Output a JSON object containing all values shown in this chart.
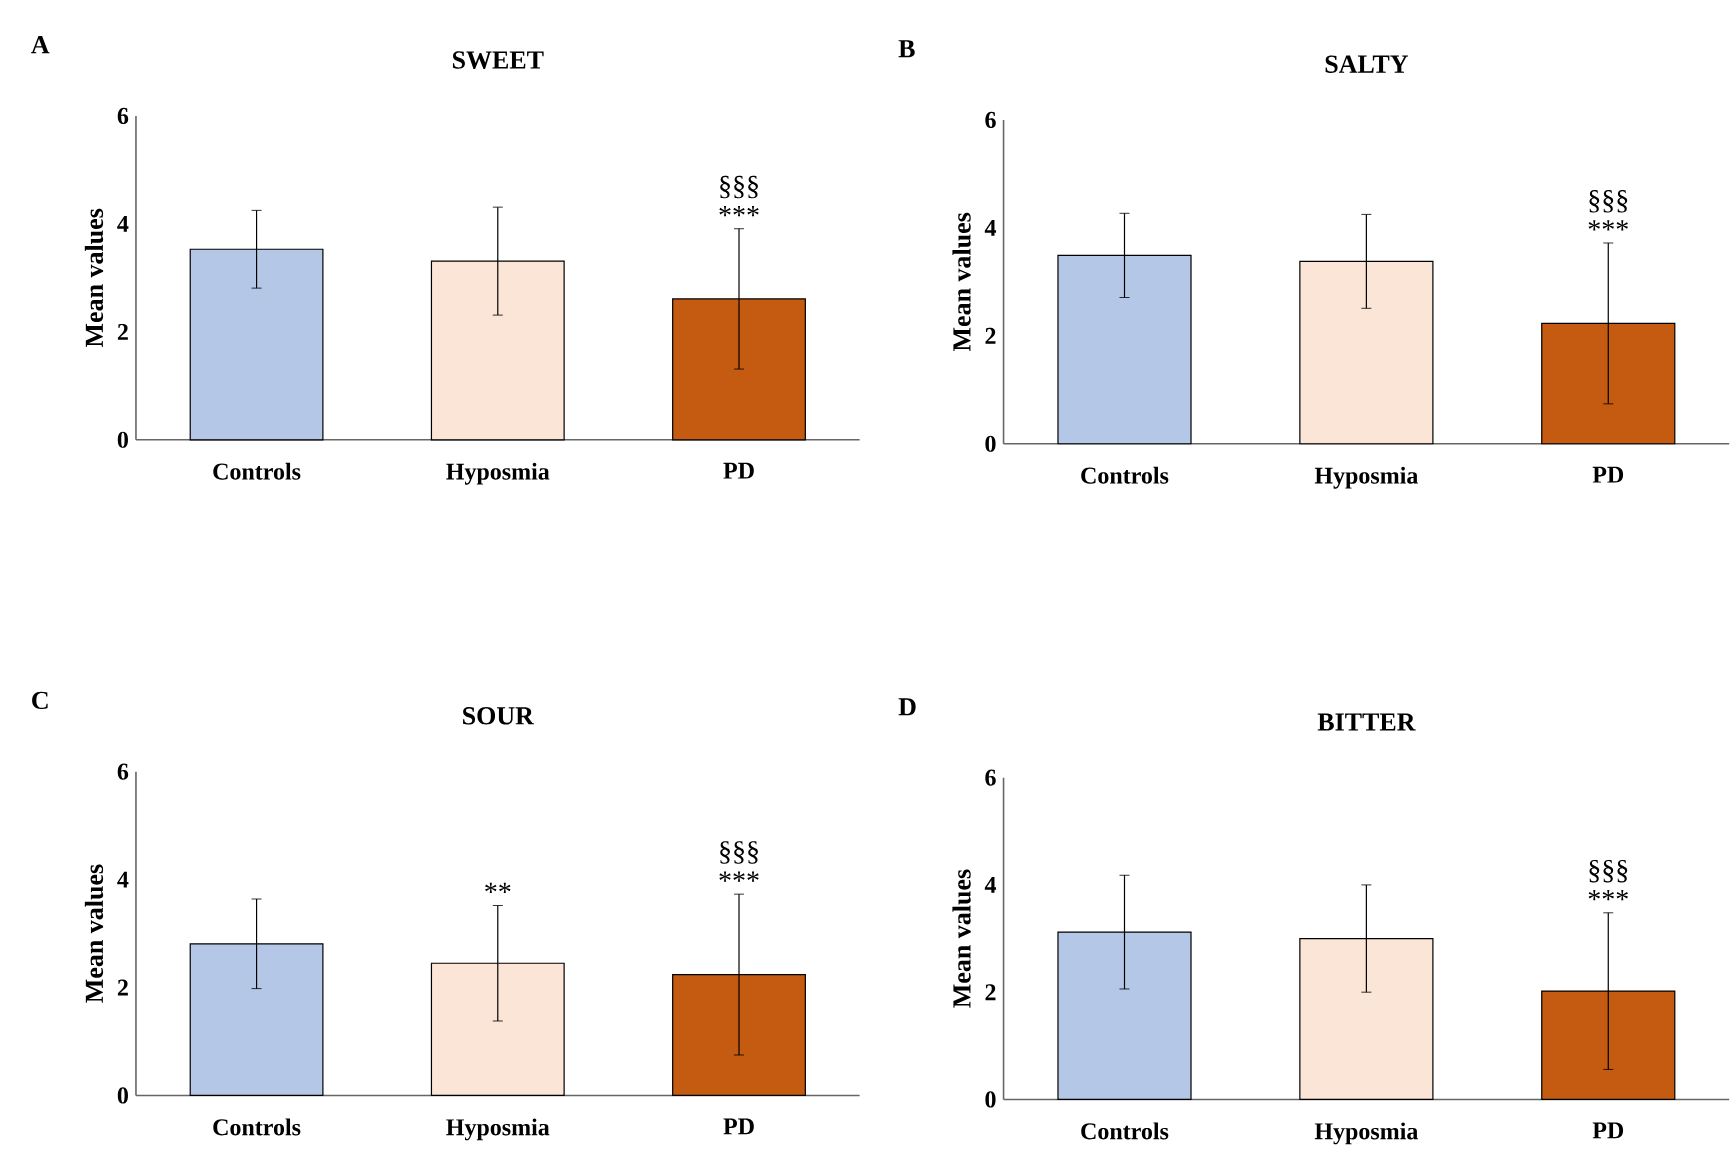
{
  "chart_data": [
    {
      "type": "bar",
      "title": "SWEET",
      "ylabel": "Mean values",
      "categories": [
        "Controls",
        "Hyposmia",
        "PD"
      ],
      "values": [
        3.53,
        3.31,
        2.61
      ],
      "errors": [
        0.72,
        1.0,
        1.3
      ],
      "colors": [
        "#b4c7e7",
        "#fbe5d6",
        "#c55a11"
      ],
      "ylim": [
        0,
        6
      ],
      "yticks": [
        0,
        2,
        4,
        6
      ],
      "annotations": [
        "A",
        "***",
        "§§§"
      ]
    },
    {
      "type": "bar",
      "title": "SALTY",
      "ylabel": "Mean values",
      "categories": [
        "Controls",
        "Hyposmia",
        "PD"
      ],
      "values": [
        3.49,
        3.38,
        2.23
      ],
      "errors": [
        0.78,
        0.87,
        1.49
      ],
      "colors": [
        "#b4c7e7",
        "#fbe5d6",
        "#c55a11"
      ],
      "ylim": [
        0,
        6
      ],
      "yticks": [
        0,
        2,
        4,
        6
      ],
      "annotations": [
        "B",
        "***",
        "§§§"
      ]
    },
    {
      "type": "bar",
      "title": "SOUR",
      "ylabel": "Mean values",
      "categories": [
        "Controls",
        "Hyposmia",
        "PD"
      ],
      "values": [
        2.81,
        2.45,
        2.24
      ],
      "errors": [
        0.83,
        1.07,
        1.49
      ],
      "colors": [
        "#b4c7e7",
        "#fbe5d6",
        "#c55a11"
      ],
      "ylim": [
        0,
        6
      ],
      "yticks": [
        0,
        2,
        4,
        6
      ],
      "annotations": [
        "C",
        "**",
        "***",
        "§§§"
      ]
    },
    {
      "type": "bar",
      "title": "BITTER",
      "ylabel": "Mean values",
      "categories": [
        "Controls",
        "Hyposmia",
        "PD"
      ],
      "values": [
        3.12,
        3.0,
        2.02
      ],
      "errors": [
        1.06,
        1.0,
        1.46
      ],
      "colors": [
        "#b4c7e7",
        "#fbe5d6",
        "#c55a11"
      ],
      "ylim": [
        0,
        6
      ],
      "yticks": [
        0,
        2,
        4,
        6
      ],
      "annotations": [
        "D",
        "***",
        "§§§"
      ]
    }
  ]
}
